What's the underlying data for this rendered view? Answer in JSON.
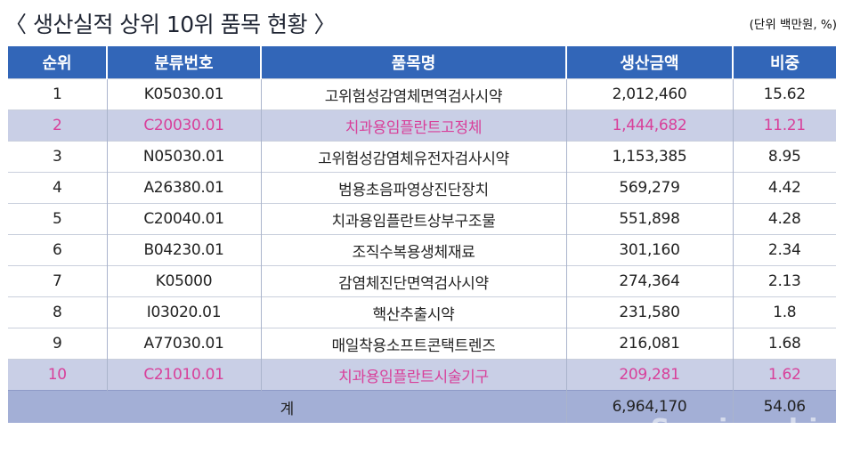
{
  "title": "〈 생산실적 상위 10위 품목 현황 〉",
  "unit_note": "(단위 백만원, %)",
  "table": {
    "headers": [
      "순위",
      "분류번호",
      "품목명",
      "생산금액",
      "비중"
    ],
    "rows": [
      {
        "rank": "1",
        "code": "K05030.01",
        "item": "고위험성감염체면역검사시약",
        "amount": "2,012,460",
        "share": "15.62",
        "highlight": false
      },
      {
        "rank": "2",
        "code": "C20030.01",
        "item": "치과용임플란트고정체",
        "amount": "1,444,682",
        "share": "11.21",
        "highlight": true
      },
      {
        "rank": "3",
        "code": "N05030.01",
        "item": "고위험성감염체유전자검사시약",
        "amount": "1,153,385",
        "share": "8.95",
        "highlight": false
      },
      {
        "rank": "4",
        "code": "A26380.01",
        "item": "범용초음파영상진단장치",
        "amount": "569,279",
        "share": "4.42",
        "highlight": false
      },
      {
        "rank": "5",
        "code": "C20040.01",
        "item": "치과용임플란트상부구조물",
        "amount": "551,898",
        "share": "4.28",
        "highlight": false
      },
      {
        "rank": "6",
        "code": "B04230.01",
        "item": "조직수복용생체재료",
        "amount": "301,160",
        "share": "2.34",
        "highlight": false
      },
      {
        "rank": "7",
        "code": "K05000",
        "item": "감염체진단면역검사시약",
        "amount": "274,364",
        "share": "2.13",
        "highlight": false
      },
      {
        "rank": "8",
        "code": "I03020.01",
        "item": "핵산추출시약",
        "amount": "231,580",
        "share": "1.8",
        "highlight": false
      },
      {
        "rank": "9",
        "code": "A77030.01",
        "item": "매일착용소프트콘택트렌즈",
        "amount": "216,081",
        "share": "1.68",
        "highlight": false
      },
      {
        "rank": "10",
        "code": "C21010.01",
        "item": "치과용임플란트시술기구",
        "amount": "209,281",
        "share": "1.62",
        "highlight": true
      }
    ],
    "total": {
      "label": "계",
      "amount": "6,964,170",
      "share": "54.06"
    }
  },
  "watermark": "Seminar.biz",
  "colors": {
    "header_bg": "#3266b8",
    "highlight_bg": "#c9cfe6",
    "highlight_text": "#d8409a",
    "total_bg": "#a3afd6"
  }
}
